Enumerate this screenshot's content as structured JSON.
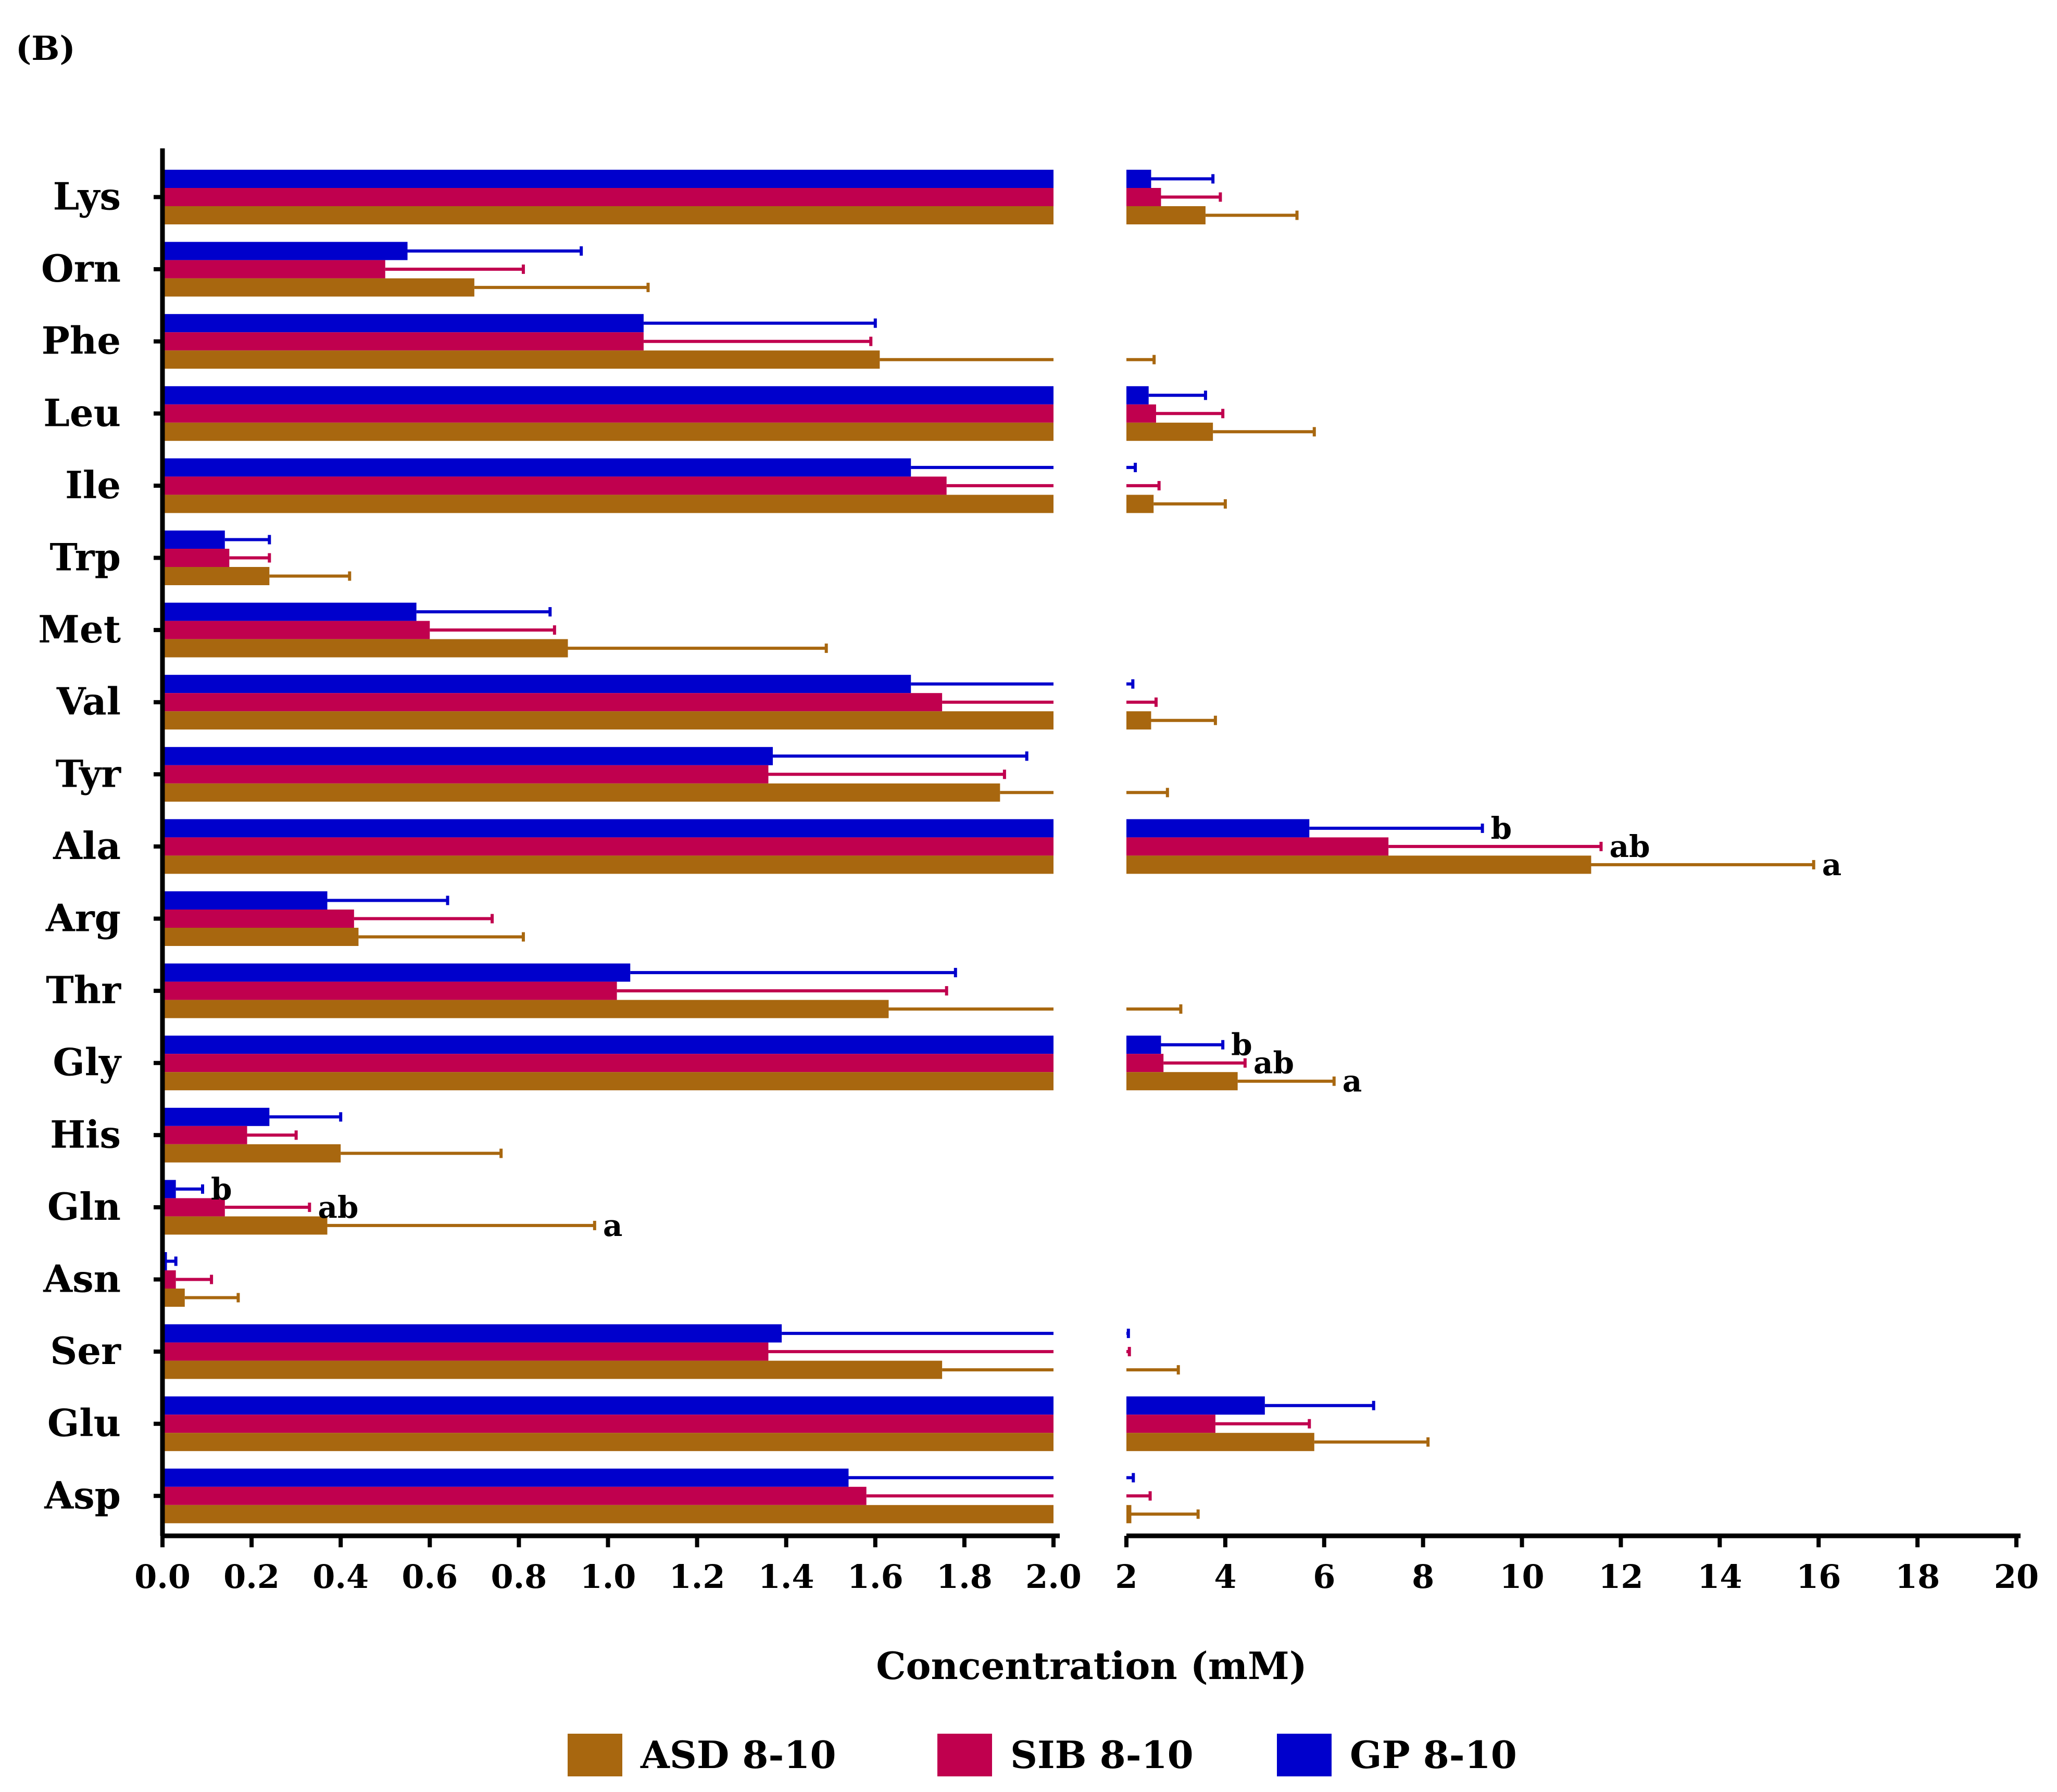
{
  "panel_label": "(B)",
  "chart_data": {
    "type": "bar",
    "orientation": "horizontal",
    "broken_axis": true,
    "title": "",
    "xlabel": "Concentration (mM)",
    "ylabel": "",
    "axis_segments": [
      {
        "range": [
          0,
          2.0
        ],
        "ticks": [
          "0.0",
          "0.2",
          "0.4",
          "0.6",
          "0.8",
          "1.0",
          "1.2",
          "1.4",
          "1.6",
          "1.8",
          "2.0"
        ]
      },
      {
        "range": [
          2,
          20
        ],
        "ticks": [
          "2",
          "4",
          "6",
          "8",
          "10",
          "12",
          "14",
          "16",
          "18",
          "20"
        ]
      }
    ],
    "categories": [
      "Lys",
      "Orn",
      "Phe",
      "Leu",
      "Ile",
      "Trp",
      "Met",
      "Val",
      "Tyr",
      "Ala",
      "Arg",
      "Thr",
      "Gly",
      "His",
      "Gln",
      "Asn",
      "Ser",
      "Glu",
      "Asp"
    ],
    "series": [
      {
        "name": "GP 8-10",
        "color": "#0000cc",
        "values": [
          2.5,
          0.55,
          1.08,
          2.45,
          1.68,
          0.14,
          0.57,
          1.68,
          1.37,
          5.7,
          0.37,
          1.05,
          2.7,
          0.24,
          0.03,
          0.01,
          1.39,
          4.8,
          1.54
        ],
        "errors": [
          1.25,
          0.39,
          0.52,
          1.15,
          0.5,
          0.1,
          0.3,
          0.45,
          0.57,
          3.5,
          0.27,
          0.73,
          1.25,
          0.16,
          0.06,
          0.02,
          0.65,
          2.2,
          0.6
        ],
        "labels": [
          "",
          "",
          "",
          "",
          "",
          "",
          "",
          "",
          "",
          "b",
          "",
          "",
          "b",
          "",
          "b",
          "",
          "",
          "",
          ""
        ]
      },
      {
        "name": "SIB 8-10",
        "color": "#c0004e",
        "values": [
          2.7,
          0.5,
          1.08,
          2.6,
          1.76,
          0.15,
          0.6,
          1.75,
          1.36,
          7.3,
          0.43,
          1.02,
          2.75,
          0.19,
          0.14,
          0.03,
          1.36,
          3.8,
          1.58
        ],
        "errors": [
          1.2,
          0.31,
          0.51,
          1.35,
          0.9,
          0.09,
          0.28,
          0.85,
          0.53,
          4.3,
          0.31,
          0.74,
          1.65,
          0.11,
          0.19,
          0.08,
          0.7,
          1.9,
          0.9
        ],
        "labels": [
          "",
          "",
          "",
          "",
          "",
          "",
          "",
          "",
          "",
          "ab",
          "",
          "",
          "ab",
          "",
          "ab",
          "",
          "",
          "",
          ""
        ]
      },
      {
        "name": "ASD 8-10",
        "color": "#a8670f",
        "values": [
          3.6,
          0.7,
          1.61,
          3.75,
          2.55,
          0.24,
          0.91,
          2.5,
          1.88,
          11.4,
          0.44,
          1.63,
          4.25,
          0.4,
          0.37,
          0.05,
          1.75,
          5.8,
          2.1
        ],
        "errors": [
          1.85,
          0.39,
          0.95,
          2.05,
          1.45,
          0.18,
          0.58,
          1.3,
          0.95,
          4.5,
          0.37,
          1.47,
          1.95,
          0.36,
          0.6,
          0.12,
          1.3,
          2.3,
          1.35
        ],
        "labels": [
          "",
          "",
          "",
          "",
          "",
          "",
          "",
          "",
          "",
          "a",
          "",
          "",
          "a",
          "",
          "a",
          "",
          "",
          "",
          ""
        ]
      }
    ],
    "legend": {
      "placement": "bottom",
      "entries": [
        "ASD 8-10",
        "SIB 8-10",
        "GP 8-10"
      ]
    }
  }
}
